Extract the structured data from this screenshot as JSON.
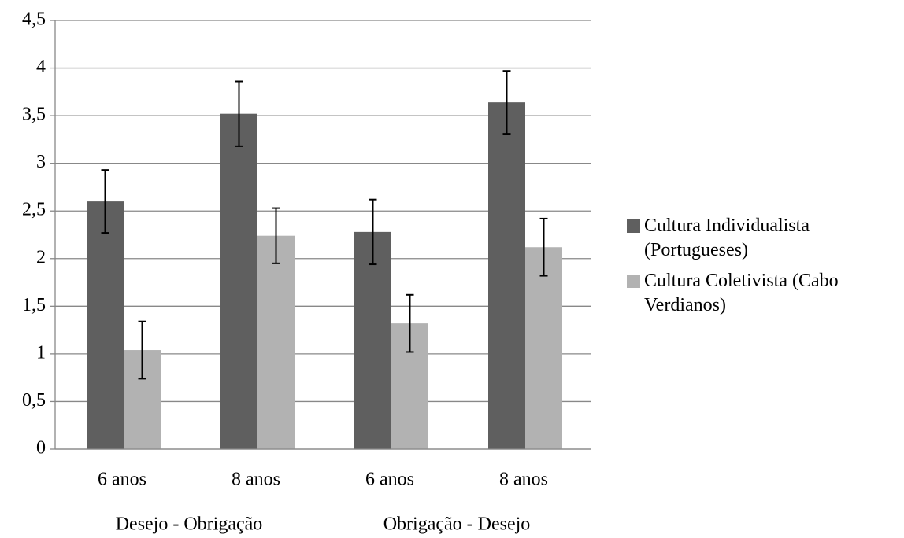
{
  "chart_data": {
    "type": "bar",
    "categories": [
      "6 anos",
      "8 anos",
      "6 anos",
      "8 anos"
    ],
    "groups": [
      "Desejo - Obrigação",
      "Obrigação - Desejo"
    ],
    "series": [
      {
        "name": "Cultura Individualista (Portugueses)",
        "color": "#5f5f5f",
        "values": [
          2.6,
          3.52,
          2.28,
          3.64
        ],
        "errors": [
          0.33,
          0.34,
          0.34,
          0.33
        ]
      },
      {
        "name": "Cultura Coletivista (Cabo Verdianos)",
        "color": "#b2b2b2",
        "values": [
          1.04,
          2.24,
          1.32,
          2.12
        ],
        "errors": [
          0.3,
          0.29,
          0.3,
          0.3
        ]
      }
    ],
    "ylim": [
      0,
      4.5
    ],
    "yticks": [
      0,
      {
        "value": 0.5,
        "label": "0,5"
      },
      1,
      {
        "value": 1.5,
        "label": "1,5"
      },
      2,
      {
        "value": 2.5,
        "label": "2,5"
      },
      3,
      {
        "value": 3.5,
        "label": "3,5"
      },
      4,
      {
        "value": 4.5,
        "label": "4,5"
      }
    ],
    "grid": true,
    "legend": "right"
  }
}
